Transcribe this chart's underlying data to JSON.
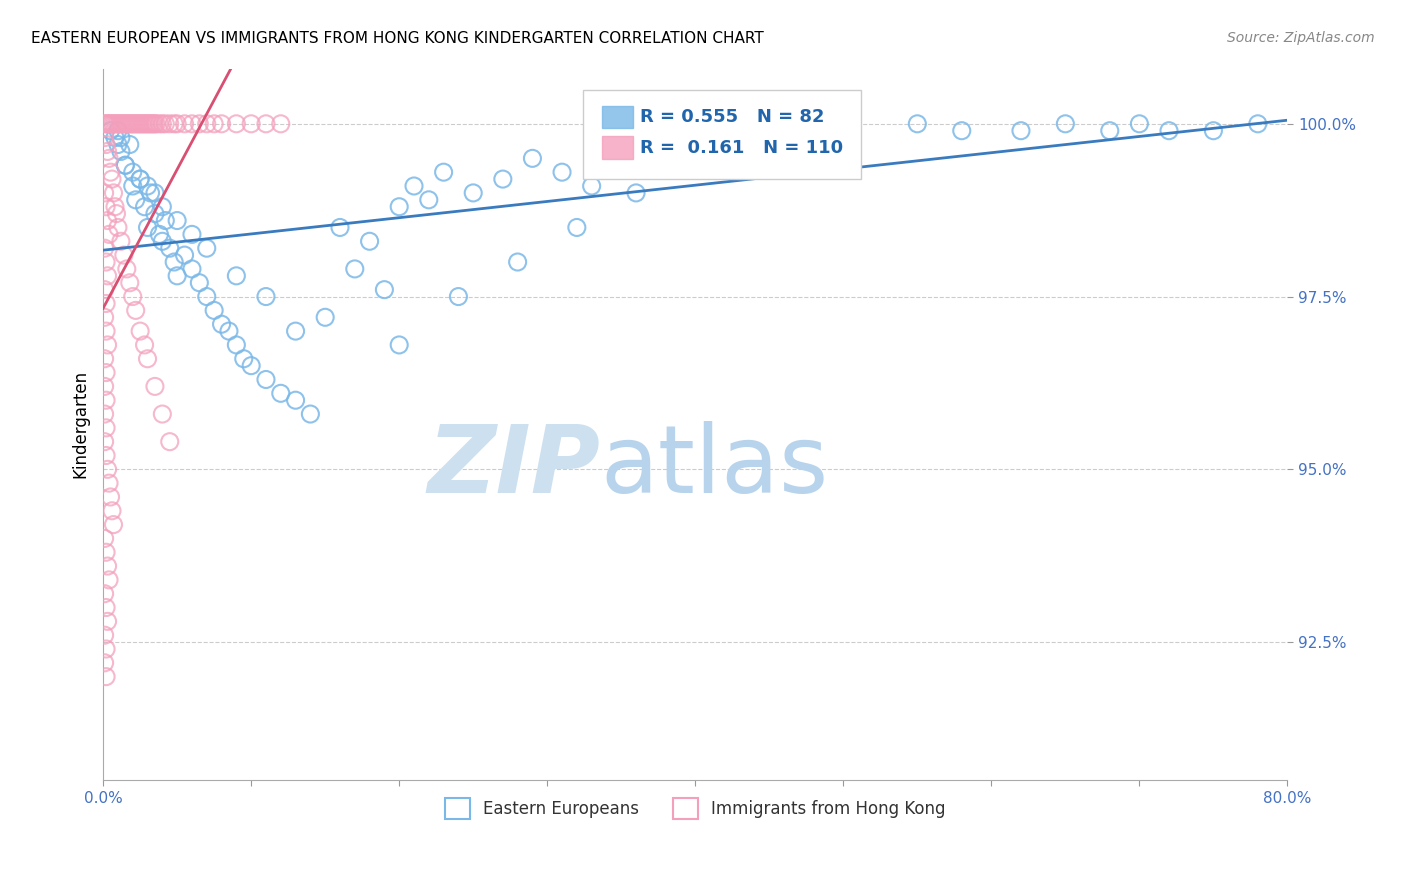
{
  "title": "EASTERN EUROPEAN VS IMMIGRANTS FROM HONG KONG KINDERGARTEN CORRELATION CHART",
  "source": "Source: ZipAtlas.com",
  "ylabel": "Kindergarten",
  "ytick_labels": [
    "92.5%",
    "95.0%",
    "97.5%",
    "100.0%"
  ],
  "ytick_values": [
    0.925,
    0.95,
    0.975,
    1.0
  ],
  "xlim": [
    0.0,
    0.8
  ],
  "ylim": [
    0.905,
    1.008
  ],
  "legend_blue_R": "0.555",
  "legend_blue_N": "82",
  "legend_pink_R": "0.161",
  "legend_pink_N": "110",
  "legend_label_blue": "Eastern Europeans",
  "legend_label_pink": "Immigrants from Hong Kong",
  "blue_color": "#7ab8e8",
  "pink_color": "#f4a0bc",
  "blue_line_color": "#3a7bbf",
  "pink_line_color": "#d94f72",
  "blue_scatter_x": [
    0.005,
    0.008,
    0.01,
    0.012,
    0.015,
    0.018,
    0.02,
    0.022,
    0.025,
    0.028,
    0.03,
    0.032,
    0.035,
    0.038,
    0.04,
    0.042,
    0.045,
    0.048,
    0.05,
    0.055,
    0.06,
    0.065,
    0.07,
    0.075,
    0.08,
    0.085,
    0.09,
    0.095,
    0.1,
    0.11,
    0.12,
    0.13,
    0.14,
    0.15,
    0.16,
    0.17,
    0.18,
    0.19,
    0.2,
    0.21,
    0.22,
    0.23,
    0.25,
    0.27,
    0.29,
    0.31,
    0.33,
    0.35,
    0.38,
    0.4,
    0.42,
    0.45,
    0.48,
    0.5,
    0.55,
    0.58,
    0.62,
    0.65,
    0.68,
    0.7,
    0.72,
    0.75,
    0.78,
    0.01,
    0.012,
    0.015,
    0.02,
    0.025,
    0.03,
    0.035,
    0.04,
    0.05,
    0.06,
    0.07,
    0.09,
    0.11,
    0.13,
    0.2,
    0.24,
    0.28,
    0.32,
    0.36
  ],
  "blue_scatter_y": [
    0.999,
    0.998,
    0.997,
    0.996,
    0.994,
    0.997,
    0.991,
    0.989,
    0.992,
    0.988,
    0.985,
    0.99,
    0.987,
    0.984,
    0.983,
    0.986,
    0.982,
    0.98,
    0.978,
    0.981,
    0.979,
    0.977,
    0.975,
    0.973,
    0.971,
    0.97,
    0.968,
    0.966,
    0.965,
    0.963,
    0.961,
    0.96,
    0.958,
    0.972,
    0.985,
    0.979,
    0.983,
    0.976,
    0.988,
    0.991,
    0.989,
    0.993,
    0.99,
    0.992,
    0.995,
    0.993,
    0.991,
    0.998,
    0.996,
    0.997,
    0.999,
    0.998,
    0.999,
    0.998,
    1.0,
    0.999,
    0.999,
    1.0,
    0.999,
    1.0,
    0.999,
    0.999,
    1.0,
    0.999,
    0.998,
    0.994,
    0.993,
    0.992,
    0.991,
    0.99,
    0.988,
    0.986,
    0.984,
    0.982,
    0.978,
    0.975,
    0.97,
    0.968,
    0.975,
    0.98,
    0.985,
    0.99
  ],
  "pink_scatter_x": [
    0.001,
    0.002,
    0.003,
    0.004,
    0.005,
    0.006,
    0.007,
    0.008,
    0.009,
    0.01,
    0.011,
    0.012,
    0.013,
    0.014,
    0.015,
    0.016,
    0.017,
    0.018,
    0.019,
    0.02,
    0.021,
    0.022,
    0.023,
    0.024,
    0.025,
    0.026,
    0.027,
    0.028,
    0.029,
    0.03,
    0.031,
    0.032,
    0.033,
    0.034,
    0.035,
    0.036,
    0.038,
    0.04,
    0.042,
    0.045,
    0.048,
    0.05,
    0.055,
    0.06,
    0.065,
    0.07,
    0.075,
    0.08,
    0.09,
    0.1,
    0.11,
    0.12,
    0.001,
    0.002,
    0.003,
    0.004,
    0.005,
    0.006,
    0.007,
    0.008,
    0.009,
    0.01,
    0.012,
    0.014,
    0.016,
    0.018,
    0.02,
    0.022,
    0.025,
    0.028,
    0.03,
    0.035,
    0.04,
    0.045,
    0.001,
    0.002,
    0.003,
    0.004,
    0.001,
    0.002,
    0.003,
    0.001,
    0.002,
    0.001,
    0.002,
    0.003,
    0.001,
    0.002,
    0.001,
    0.002,
    0.001,
    0.002,
    0.001,
    0.002,
    0.003,
    0.004,
    0.005,
    0.006,
    0.007,
    0.001,
    0.002,
    0.003,
    0.004,
    0.001,
    0.002,
    0.003,
    0.001,
    0.002,
    0.001,
    0.002
  ],
  "pink_scatter_y": [
    1.0,
    1.0,
    1.0,
    1.0,
    1.0,
    1.0,
    1.0,
    1.0,
    1.0,
    1.0,
    1.0,
    1.0,
    1.0,
    1.0,
    1.0,
    1.0,
    1.0,
    1.0,
    1.0,
    1.0,
    1.0,
    1.0,
    1.0,
    1.0,
    1.0,
    1.0,
    1.0,
    1.0,
    1.0,
    1.0,
    1.0,
    1.0,
    1.0,
    1.0,
    1.0,
    1.0,
    1.0,
    1.0,
    1.0,
    1.0,
    1.0,
    1.0,
    1.0,
    1.0,
    1.0,
    1.0,
    1.0,
    1.0,
    1.0,
    1.0,
    1.0,
    1.0,
    0.998,
    0.997,
    0.996,
    0.995,
    0.993,
    0.992,
    0.99,
    0.988,
    0.987,
    0.985,
    0.983,
    0.981,
    0.979,
    0.977,
    0.975,
    0.973,
    0.97,
    0.968,
    0.966,
    0.962,
    0.958,
    0.954,
    0.99,
    0.988,
    0.986,
    0.984,
    0.982,
    0.98,
    0.978,
    0.976,
    0.974,
    0.972,
    0.97,
    0.968,
    0.966,
    0.964,
    0.962,
    0.96,
    0.958,
    0.956,
    0.954,
    0.952,
    0.95,
    0.948,
    0.946,
    0.944,
    0.942,
    0.94,
    0.938,
    0.936,
    0.934,
    0.932,
    0.93,
    0.928,
    0.926,
    0.924,
    0.922,
    0.92
  ]
}
